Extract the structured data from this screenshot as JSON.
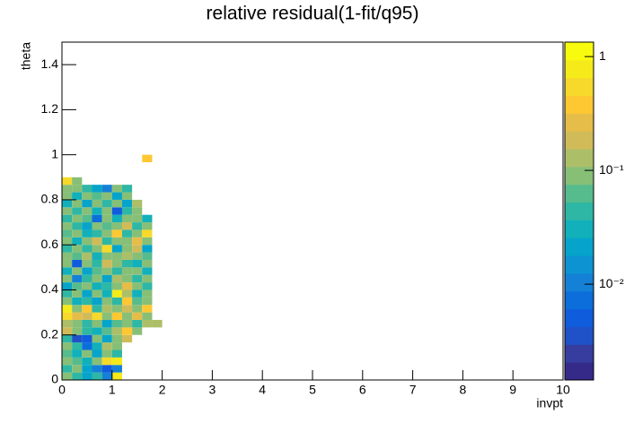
{
  "chart_data": {
    "type": "heatmap",
    "title": "relative residual(1-fit/q95)",
    "xlabel": "invpt",
    "ylabel": "theta",
    "xlim": [
      0,
      10
    ],
    "ylim": [
      0,
      1.5
    ],
    "xticks": [
      0,
      1,
      2,
      3,
      4,
      5,
      6,
      7,
      8,
      9,
      10
    ],
    "yticks": [
      0,
      0.2,
      0.4,
      0.6,
      0.8,
      1,
      1.2,
      1.4
    ],
    "zlog": true,
    "zlim": [
      0.00144,
      1.34
    ],
    "zticks": [
      {
        "value": 1,
        "label": "1"
      },
      {
        "value": 0.1,
        "label": "10⁻¹"
      },
      {
        "value": 0.01,
        "label": "10⁻²"
      }
    ],
    "palette": [
      "#352a87",
      "#363d9e",
      "#1f52c8",
      "#0f5cdd",
      "#0b6edb",
      "#1481d6",
      "#0d93d2",
      "#06a4ca",
      "#11b0bb",
      "#2eb7a4",
      "#56bb8d",
      "#87bf77",
      "#acbf68",
      "#d1bb59",
      "#e6bd48",
      "#fec832",
      "#f6d92a",
      "#f5ea1a",
      "#f9fb0e"
    ],
    "xbins": [
      0,
      0.2,
      0.4,
      0.6,
      0.8,
      1,
      1.2,
      1.4,
      1.6,
      1.8,
      2
    ],
    "ybins": [
      0,
      0.0333,
      0.0667,
      0.1,
      0.1333,
      0.1667,
      0.2,
      0.2333,
      0.2667,
      0.3,
      0.3333,
      0.3667,
      0.4,
      0.4333,
      0.4667,
      0.5,
      0.5333,
      0.5667,
      0.6,
      0.6333,
      0.6667,
      0.7,
      0.7333,
      0.7667,
      0.8,
      0.8333,
      0.8667,
      0.9,
      0.9333,
      0.9667,
      1
    ],
    "z": [
      [
        0.08,
        0.05,
        0.02,
        0.04,
        0.01,
        0.8,
        null,
        null,
        null,
        null
      ],
      [
        0.05,
        0.1,
        0.02,
        0.01,
        0.005,
        0.01,
        null,
        null,
        null,
        null
      ],
      [
        0.1,
        0.06,
        0.03,
        0.1,
        0.5,
        0.9,
        null,
        null,
        null,
        null
      ],
      [
        0.06,
        0.03,
        0.1,
        0.02,
        0.08,
        0.05,
        null,
        null,
        null,
        null
      ],
      [
        0.1,
        0.05,
        0.008,
        0.03,
        0.15,
        0.1,
        null,
        null,
        null,
        null
      ],
      [
        0.04,
        0.004,
        0.006,
        0.1,
        0.02,
        0.08,
        0.2,
        null,
        null,
        null
      ],
      [
        0.2,
        0.1,
        0.05,
        0.03,
        0.06,
        0.12,
        0.4,
        0.1,
        null,
        null
      ],
      [
        0.15,
        0.08,
        0.04,
        0.1,
        0.02,
        0.06,
        0.1,
        0.05,
        0.12,
        0.15
      ],
      [
        0.5,
        0.3,
        0.2,
        0.6,
        0.1,
        0.4,
        0.08,
        0.3,
        0.1,
        null
      ],
      [
        0.7,
        0.1,
        0.4,
        0.05,
        0.15,
        0.08,
        0.2,
        0.1,
        0.4,
        null
      ],
      [
        0.1,
        0.03,
        0.05,
        0.02,
        0.1,
        0.04,
        0.4,
        0.06,
        0.1,
        null
      ],
      [
        0.05,
        0.08,
        0.02,
        0.1,
        0.03,
        0.9,
        0.15,
        0.03,
        0.08,
        null
      ],
      [
        0.02,
        0.06,
        0.1,
        0.03,
        0.05,
        0.1,
        0.3,
        0.1,
        0.05,
        null
      ],
      [
        0.1,
        0.01,
        0.04,
        0.08,
        0.02,
        0.15,
        0.1,
        0.05,
        0.1,
        null
      ],
      [
        0.03,
        0.1,
        0.02,
        0.06,
        0.1,
        0.04,
        0.08,
        0.1,
        0.03,
        null
      ],
      [
        0.08,
        0.005,
        0.1,
        0.04,
        0.2,
        0.1,
        0.05,
        0.03,
        0.1,
        null
      ],
      [
        0.1,
        0.06,
        0.15,
        0.03,
        0.08,
        0.1,
        0.15,
        0.1,
        0.06,
        null
      ],
      [
        0.04,
        0.1,
        0.05,
        0.1,
        0.6,
        0.02,
        0.1,
        0.2,
        0.02,
        null
      ],
      [
        0.1,
        0.03,
        0.08,
        0.2,
        0.05,
        0.1,
        0.08,
        0.3,
        0.1,
        null
      ],
      [
        0.06,
        0.1,
        0.03,
        0.05,
        0.1,
        0.4,
        0.05,
        0.1,
        0.5,
        null
      ],
      [
        0.1,
        0.04,
        0.02,
        0.1,
        0.06,
        0.1,
        0.2,
        0.05,
        0.1,
        null
      ],
      [
        0.05,
        0.1,
        0.06,
        0.007,
        0.1,
        0.03,
        0.1,
        0.1,
        0.03,
        null
      ],
      [
        0.1,
        0.05,
        0.1,
        0.03,
        0.08,
        0.006,
        0.05,
        0.08,
        null,
        null
      ],
      [
        0.03,
        0.1,
        0.02,
        0.1,
        0.05,
        0.1,
        0.02,
        0.15,
        null,
        null
      ],
      [
        0.1,
        0.03,
        0.1,
        0.06,
        0.1,
        0.02,
        0.1,
        null,
        null,
        null
      ],
      [
        0.08,
        0.1,
        0.05,
        0.02,
        0.01,
        0.08,
        0.05,
        null,
        null,
        null
      ],
      [
        0.6,
        0.1,
        null,
        null,
        null,
        null,
        null,
        null,
        null,
        null
      ],
      [
        null,
        null,
        null,
        null,
        null,
        null,
        null,
        null,
        null,
        null
      ],
      [
        null,
        null,
        null,
        null,
        null,
        null,
        null,
        null,
        null,
        null
      ],
      [
        null,
        null,
        null,
        null,
        null,
        null,
        null,
        null,
        0.4,
        null
      ]
    ]
  }
}
